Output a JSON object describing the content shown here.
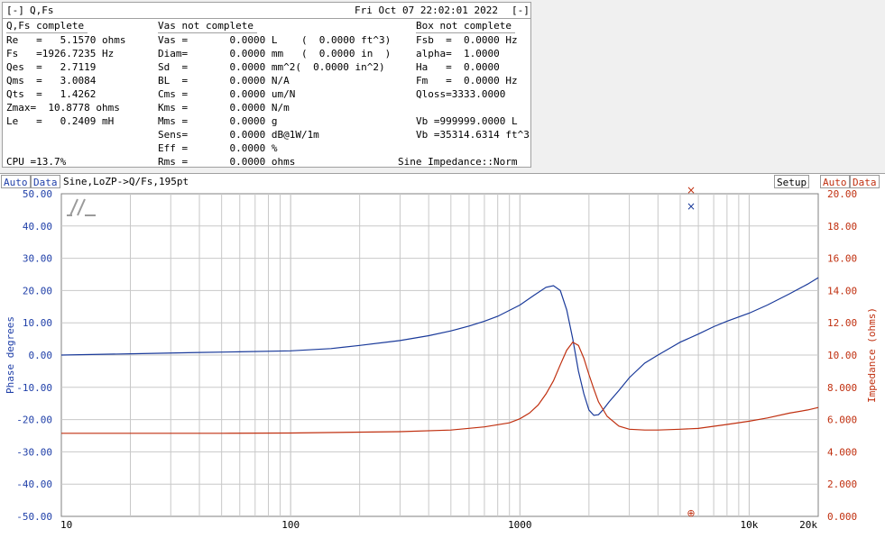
{
  "window": {
    "menu_label": "[-]",
    "title": "Q,Fs",
    "datetime": "Fri Oct 07 22:02:01 2022",
    "close_label": "[-]"
  },
  "columns": {
    "qfs_header": "Q,Fs complete",
    "vas_header": "Vas not complete",
    "box_header": "Box not complete"
  },
  "qfs": [
    "Re   =   5.1570 ohms",
    "Fs   =1926.7235 Hz",
    "Qes  =   2.7119",
    "Qms  =   3.0084",
    "Qts  =   1.4262",
    "Zmax=  10.8778 ohms",
    "Le   =   0.2409 mH"
  ],
  "vas": [
    "Vas =       0.0000 L    (  0.0000 ft^3)",
    "Diam=       0.0000 mm   (  0.0000 in  )",
    "Sd  =       0.0000 mm^2(  0.0000 in^2)",
    "BL  =       0.0000 N/A",
    "Cms =       0.0000 um/N",
    "Kms =       0.0000 N/m",
    "Mms =       0.0000 g",
    "Sens=       0.0000 dB@1W/1m",
    "Eff =       0.0000 %",
    "Rms =       0.0000 ohms"
  ],
  "box": [
    "Fsb  =  0.0000 Hz",
    "alpha=  1.0000",
    "Ha   =  0.0000",
    "Fm   =  0.0000 Hz",
    "Qloss=3333.0000",
    "",
    "Vb =999999.0000 L",
    "Vb =35314.6314 ft^3"
  ],
  "cpu": "CPU =13.7%",
  "mode": "Sine Impedance::Norm",
  "toolbar": {
    "left_auto": "Auto",
    "left_data": "Data",
    "plot_title": "Sine,LoZP->Q/Fs,195pt",
    "setup": "Setup",
    "right_auto": "Auto",
    "right_data": "Data"
  },
  "colors": {
    "phase": "#1a3a9a",
    "impedance": "#c03010",
    "left_axis_text": "#1f3fa8",
    "right_axis_text": "#c03010",
    "grid": "#c8c8c8"
  },
  "chart_data": {
    "type": "line",
    "x_scale": "log",
    "xlim": [
      10,
      20000
    ],
    "x_tick_labels": [
      "10",
      "100",
      "1000",
      "10k",
      "20k"
    ],
    "x_tick_values": [
      10,
      100,
      1000,
      10000,
      20000
    ],
    "ylabel_left": "Phase degrees",
    "ylim_left": [
      -50,
      50
    ],
    "y_ticks_left": [
      "50.00",
      "40.00",
      "30.00",
      "20.00",
      "10.00",
      "0.00",
      "-10.00",
      "-20.00",
      "-30.00",
      "-40.00",
      "-50.00"
    ],
    "ylabel_right": "Impedance (ohms)",
    "ylim_right": [
      0,
      20
    ],
    "y_ticks_right": [
      "20.00",
      "18.00",
      "16.00",
      "14.00",
      "12.00",
      "10.00",
      "8.000",
      "6.000",
      "4.000",
      "2.000",
      "0.000"
    ],
    "grid": true,
    "series": [
      {
        "axis": "left",
        "x": [
          10,
          20,
          40,
          60,
          100,
          150,
          200,
          300,
          400,
          500,
          600,
          700,
          800,
          1000,
          1150,
          1300,
          1400,
          1500,
          1600,
          1700,
          1800,
          1900,
          2000,
          2100,
          2200,
          2300,
          2450,
          2700,
          3000,
          3500,
          4000,
          5000,
          6000,
          7000,
          8000,
          10000,
          12000,
          15000,
          18000,
          20000
        ],
        "y": [
          0,
          0.4,
          0.8,
          1.0,
          1.3,
          2.0,
          3.0,
          4.5,
          6.0,
          7.5,
          9.0,
          10.5,
          12.0,
          15.5,
          18.5,
          21.0,
          21.5,
          20.0,
          14.0,
          5.0,
          -5.0,
          -12.0,
          -17.0,
          -18.7,
          -18.5,
          -17.0,
          -14.5,
          -11.0,
          -7.0,
          -2.5,
          0,
          4.0,
          6.5,
          8.8,
          10.5,
          13.0,
          15.5,
          19.0,
          22.0,
          24.0
        ]
      },
      {
        "axis": "right",
        "x": [
          10,
          50,
          100,
          300,
          500,
          700,
          900,
          1000,
          1100,
          1200,
          1300,
          1400,
          1500,
          1600,
          1700,
          1800,
          1900,
          2000,
          2100,
          2200,
          2400,
          2700,
          3000,
          3500,
          4000,
          5000,
          6000,
          8000,
          10000,
          12000,
          15000,
          18000,
          20000
        ],
        "y": [
          5.15,
          5.15,
          5.17,
          5.25,
          5.35,
          5.55,
          5.8,
          6.05,
          6.4,
          6.9,
          7.6,
          8.4,
          9.4,
          10.3,
          10.8,
          10.6,
          9.8,
          8.8,
          7.9,
          7.1,
          6.2,
          5.6,
          5.4,
          5.35,
          5.35,
          5.4,
          5.45,
          5.7,
          5.9,
          6.1,
          6.4,
          6.6,
          6.75
        ]
      }
    ]
  }
}
